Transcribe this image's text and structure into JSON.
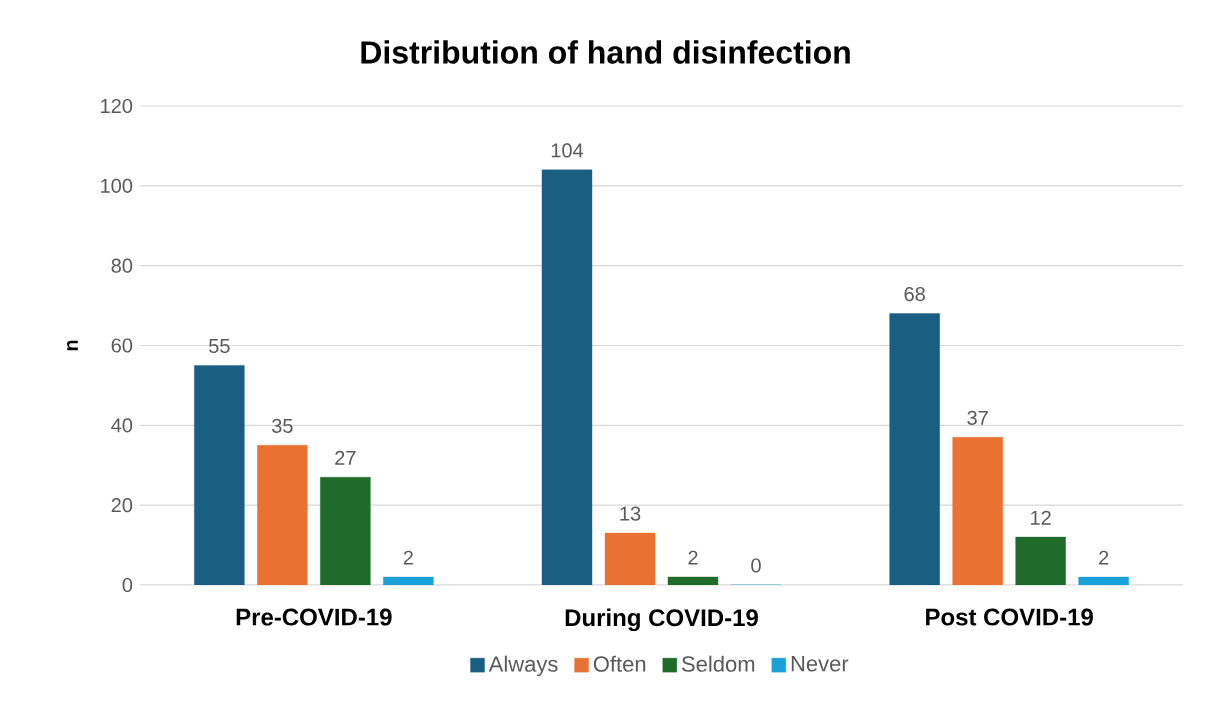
{
  "chart_data": {
    "type": "bar",
    "title": "Distribution of hand disinfection",
    "ylabel": "n",
    "categories": [
      "Pre-COVID-19",
      "During COVID-19",
      "Post COVID-19"
    ],
    "series": [
      {
        "name": "Always",
        "color": "#1a5f82",
        "values": [
          55,
          104,
          68
        ]
      },
      {
        "name": "Often",
        "color": "#e97132",
        "values": [
          35,
          13,
          37
        ]
      },
      {
        "name": "Seldom",
        "color": "#1e6b2a",
        "values": [
          27,
          2,
          12
        ]
      },
      {
        "name": "Never",
        "color": "#1aa0d8",
        "values": [
          2,
          0,
          2
        ]
      }
    ],
    "ylim": [
      0,
      120
    ],
    "yticks": [
      0,
      20,
      40,
      60,
      80,
      100,
      120
    ],
    "grid": "y",
    "legend": "bottom",
    "data_labels": true
  }
}
